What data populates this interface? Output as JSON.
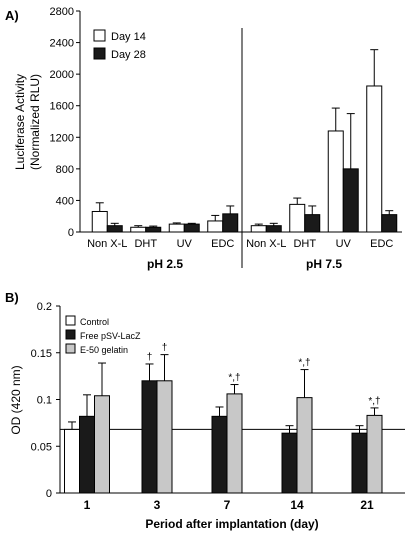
{
  "chart_data": [
    {
      "panel_label": "A)",
      "type": "bar",
      "ylabel_lines": [
        "Luciferase Activity",
        "(Normalized RLU)"
      ],
      "ylim": [
        0,
        2800
      ],
      "yticks": [
        "0",
        "400",
        "800",
        "1200",
        "1600",
        "2000",
        "2400",
        "2800"
      ],
      "groups": [
        {
          "label": "pH 2.5",
          "categories": [
            "Non X-L",
            "DHT",
            "UV",
            "EDC"
          ]
        },
        {
          "label": "pH 7.5",
          "categories": [
            "Non X-L",
            "DHT",
            "UV",
            "EDC"
          ]
        }
      ],
      "series": [
        {
          "name": "Day 14",
          "color": "#ffffff",
          "values": [
            260,
            60,
            100,
            140,
            80,
            350,
            1280,
            1850
          ],
          "errors": [
            110,
            20,
            15,
            70,
            20,
            80,
            290,
            460
          ]
        },
        {
          "name": "Day 28",
          "color": "#1a1a1a",
          "values": [
            80,
            60,
            100,
            230,
            80,
            220,
            800,
            220
          ],
          "errors": [
            30,
            15,
            10,
            100,
            30,
            110,
            700,
            50
          ]
        }
      ],
      "legend_position": "top-left",
      "grid": false
    },
    {
      "panel_label": "B)",
      "type": "bar",
      "xlabel": "Period after implantation (day)",
      "ylabel": "OD (420 nm)",
      "ylim": [
        0,
        0.2
      ],
      "yticks": [
        "0",
        "0.05",
        "0.1",
        "0.15",
        "0.2"
      ],
      "categories": [
        "1",
        "3",
        "7",
        "14",
        "21"
      ],
      "reference_line": 0.068,
      "series": [
        {
          "name": "Control",
          "color": "#ffffff",
          "values": [
            0.068,
            null,
            null,
            null,
            null
          ],
          "errors": [
            0.008,
            null,
            null,
            null,
            null
          ]
        },
        {
          "name": "Free pSV-LacZ",
          "color": "#1a1a1a",
          "values": [
            0.082,
            0.12,
            0.082,
            0.064,
            0.064
          ],
          "errors": [
            0.023,
            0.018,
            0.01,
            0.008,
            0.008
          ]
        },
        {
          "name": "E-50 gelatin",
          "color": "#c8c8c8",
          "values": [
            0.104,
            0.12,
            0.106,
            0.102,
            0.083
          ],
          "errors": [
            0.035,
            0.028,
            0.01,
            0.03,
            0.008
          ]
        }
      ],
      "annotations": [
        {
          "category": "3",
          "series": "Free pSV-LacZ",
          "text": "†"
        },
        {
          "category": "3",
          "series": "E-50 gelatin",
          "text": "†"
        },
        {
          "category": "7",
          "series": "E-50 gelatin",
          "text": "*,†"
        },
        {
          "category": "14",
          "series": "E-50 gelatin",
          "text": "*,†"
        },
        {
          "category": "21",
          "series": "E-50 gelatin",
          "text": "*,†"
        }
      ],
      "legend_position": "top-left",
      "grid": false
    }
  ]
}
